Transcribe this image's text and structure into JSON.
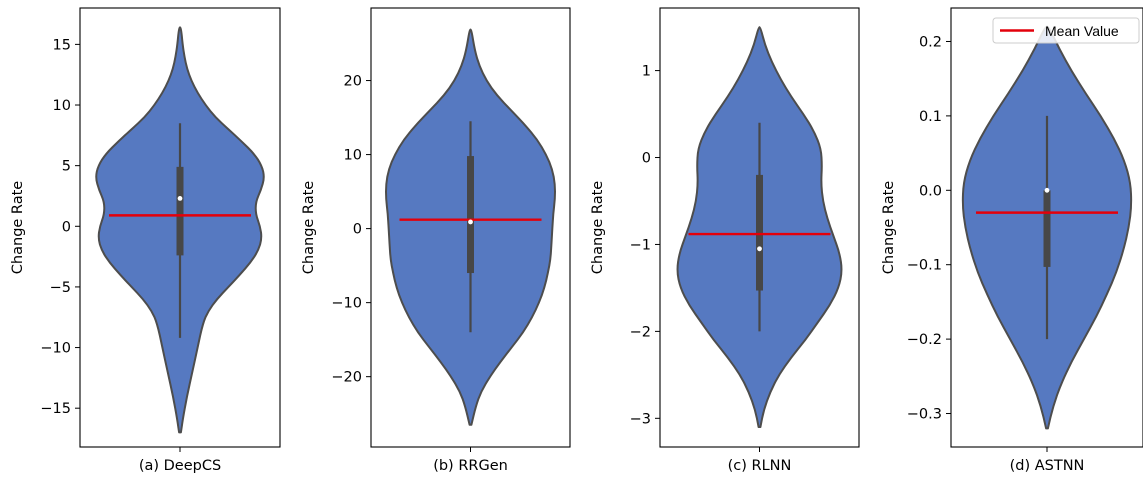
{
  "colors": {
    "violin": "#5679c1",
    "violin_edge": "#4d4d4d",
    "box": "#474747",
    "median": "#ffffff",
    "mean_line": "#e3000b"
  },
  "legend": {
    "mean_label": "Mean Value",
    "placement": "upper-right of panel (d)"
  },
  "chart_data": [
    {
      "type": "violin",
      "xlabel": "(a) DeepCS",
      "ylabel": "Change Rate",
      "ylim": [
        -18.2,
        18.0
      ],
      "yticks": [
        -15,
        -10,
        -5,
        0,
        5,
        10,
        15
      ],
      "ytick_labels": [
        "−15",
        "−10",
        "−5",
        "0",
        "5",
        "10",
        "15"
      ],
      "density_profile": [
        [
          -17.0,
          0.01
        ],
        [
          -16,
          0.03
        ],
        [
          -14,
          0.08
        ],
        [
          -12,
          0.14
        ],
        [
          -10,
          0.2
        ],
        [
          -8,
          0.26
        ],
        [
          -7,
          0.32
        ],
        [
          -6,
          0.42
        ],
        [
          -5,
          0.55
        ],
        [
          -4,
          0.68
        ],
        [
          -3,
          0.8
        ],
        [
          -2,
          0.89
        ],
        [
          -1,
          0.93
        ],
        [
          0,
          0.91
        ],
        [
          1,
          0.86
        ],
        [
          2,
          0.86
        ],
        [
          3,
          0.92
        ],
        [
          4,
          0.96
        ],
        [
          5,
          0.93
        ],
        [
          6,
          0.84
        ],
        [
          7,
          0.7
        ],
        [
          8,
          0.55
        ],
        [
          9,
          0.4
        ],
        [
          10,
          0.29
        ],
        [
          11,
          0.2
        ],
        [
          12,
          0.13
        ],
        [
          13,
          0.08
        ],
        [
          14,
          0.05
        ],
        [
          15,
          0.03
        ],
        [
          16.4,
          0.01
        ]
      ],
      "whisker": [
        -9.2,
        8.5
      ],
      "q1": -2.4,
      "q3": 4.9,
      "median": 2.3,
      "mean": 0.9
    },
    {
      "type": "violin",
      "xlabel": "(b) RRGen",
      "ylabel": "Change Rate",
      "ylim": [
        -29.5,
        29.8
      ],
      "yticks": [
        -20,
        -10,
        0,
        10,
        20
      ],
      "ytick_labels": [
        "−20",
        "−10",
        "0",
        "10",
        "20"
      ],
      "density_profile": [
        [
          -26.5,
          0.01
        ],
        [
          -24,
          0.06
        ],
        [
          -22,
          0.12
        ],
        [
          -20,
          0.22
        ],
        [
          -18,
          0.34
        ],
        [
          -16,
          0.47
        ],
        [
          -14,
          0.6
        ],
        [
          -12,
          0.7
        ],
        [
          -10,
          0.78
        ],
        [
          -8,
          0.84
        ],
        [
          -6,
          0.88
        ],
        [
          -4,
          0.91
        ],
        [
          -2,
          0.92
        ],
        [
          0,
          0.93
        ],
        [
          2,
          0.94
        ],
        [
          4,
          0.96
        ],
        [
          6,
          0.96
        ],
        [
          8,
          0.93
        ],
        [
          10,
          0.86
        ],
        [
          12,
          0.76
        ],
        [
          14,
          0.62
        ],
        [
          16,
          0.46
        ],
        [
          18,
          0.3
        ],
        [
          20,
          0.18
        ],
        [
          22,
          0.1
        ],
        [
          24,
          0.05
        ],
        [
          26.9,
          0.01
        ]
      ],
      "whisker": [
        -14.0,
        14.5
      ],
      "q1": -6.0,
      "q3": 9.8,
      "median": 0.9,
      "mean": 1.2
    },
    {
      "type": "violin",
      "xlabel": "(c) RLNN",
      "ylabel": "Change Rate",
      "ylim": [
        -3.33,
        1.72
      ],
      "yticks": [
        -3,
        -2,
        -1,
        0,
        1
      ],
      "ytick_labels": [
        "−3",
        "−2",
        "−1",
        "0",
        "1"
      ],
      "density_profile": [
        [
          -3.1,
          0.01
        ],
        [
          -2.9,
          0.05
        ],
        [
          -2.7,
          0.12
        ],
        [
          -2.5,
          0.22
        ],
        [
          -2.3,
          0.36
        ],
        [
          -2.1,
          0.52
        ],
        [
          -1.9,
          0.66
        ],
        [
          -1.7,
          0.8
        ],
        [
          -1.5,
          0.9
        ],
        [
          -1.3,
          0.94
        ],
        [
          -1.1,
          0.91
        ],
        [
          -0.9,
          0.84
        ],
        [
          -0.7,
          0.77
        ],
        [
          -0.5,
          0.72
        ],
        [
          -0.3,
          0.7
        ],
        [
          -0.1,
          0.71
        ],
        [
          0.1,
          0.7
        ],
        [
          0.3,
          0.62
        ],
        [
          0.5,
          0.5
        ],
        [
          0.7,
          0.36
        ],
        [
          0.9,
          0.24
        ],
        [
          1.1,
          0.14
        ],
        [
          1.3,
          0.06
        ],
        [
          1.5,
          0.01
        ]
      ],
      "whisker": [
        -2.0,
        0.4
      ],
      "q1": -1.53,
      "q3": -0.2,
      "median": -1.05,
      "mean": -0.88
    },
    {
      "type": "violin",
      "xlabel": "(d) ASTNN",
      "ylabel": "Change Rate",
      "ylim": [
        -0.345,
        0.245
      ],
      "yticks": [
        -0.3,
        -0.2,
        -0.1,
        0.0,
        0.1,
        0.2
      ],
      "ytick_labels": [
        "−0.3",
        "−0.2",
        "−0.1",
        "0.0",
        "0.1",
        "0.2"
      ],
      "density_profile": [
        [
          -0.32,
          0.01
        ],
        [
          -0.29,
          0.07
        ],
        [
          -0.26,
          0.16
        ],
        [
          -0.23,
          0.28
        ],
        [
          -0.2,
          0.42
        ],
        [
          -0.17,
          0.56
        ],
        [
          -0.14,
          0.68
        ],
        [
          -0.11,
          0.79
        ],
        [
          -0.08,
          0.87
        ],
        [
          -0.05,
          0.93
        ],
        [
          -0.02,
          0.96
        ],
        [
          0.01,
          0.95
        ],
        [
          0.04,
          0.88
        ],
        [
          0.07,
          0.76
        ],
        [
          0.1,
          0.61
        ],
        [
          0.13,
          0.44
        ],
        [
          0.16,
          0.28
        ],
        [
          0.19,
          0.14
        ],
        [
          0.22,
          0.02
        ]
      ],
      "whisker": [
        -0.2,
        0.1
      ],
      "q1": -0.103,
      "q3": 0.0,
      "median": 0.0,
      "mean": -0.03
    }
  ]
}
